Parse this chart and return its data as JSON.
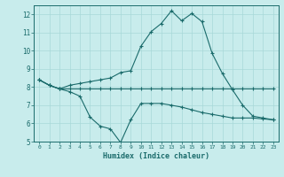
{
  "xlabel": "Humidex (Indice chaleur)",
  "x_values": [
    0,
    1,
    2,
    3,
    4,
    5,
    6,
    7,
    8,
    9,
    10,
    11,
    12,
    13,
    14,
    15,
    16,
    17,
    18,
    19,
    20,
    21,
    22,
    23
  ],
  "line1_y": [
    8.4,
    8.1,
    7.9,
    7.9,
    7.9,
    7.9,
    7.9,
    7.9,
    7.9,
    7.9,
    7.9,
    7.9,
    7.9,
    7.9,
    7.9,
    7.9,
    7.9,
    7.9,
    7.9,
    7.9,
    7.9,
    7.9,
    7.9,
    7.9
  ],
  "line2_y": [
    8.4,
    8.1,
    7.9,
    7.75,
    7.5,
    6.35,
    5.85,
    5.7,
    4.95,
    6.2,
    7.1,
    7.1,
    7.1,
    7.0,
    6.9,
    6.75,
    6.6,
    6.5,
    6.4,
    6.3,
    6.3,
    6.3,
    6.25,
    6.2
  ],
  "line3_y": [
    8.4,
    8.1,
    7.9,
    8.1,
    8.2,
    8.3,
    8.4,
    8.5,
    8.8,
    8.9,
    10.25,
    11.05,
    11.5,
    12.2,
    11.65,
    12.05,
    11.6,
    9.85,
    8.75,
    7.85,
    7.0,
    6.4,
    6.3,
    6.2
  ],
  "line_color": "#1a6b6b",
  "bg_color": "#c8ecec",
  "grid_color": "#a8d8d8",
  "ylim": [
    5,
    12.5
  ],
  "xlim": [
    -0.5,
    23.5
  ],
  "yticks": [
    5,
    6,
    7,
    8,
    9,
    10,
    11,
    12
  ],
  "xticks": [
    0,
    1,
    2,
    3,
    4,
    5,
    6,
    7,
    8,
    9,
    10,
    11,
    12,
    13,
    14,
    15,
    16,
    17,
    18,
    19,
    20,
    21,
    22,
    23
  ]
}
